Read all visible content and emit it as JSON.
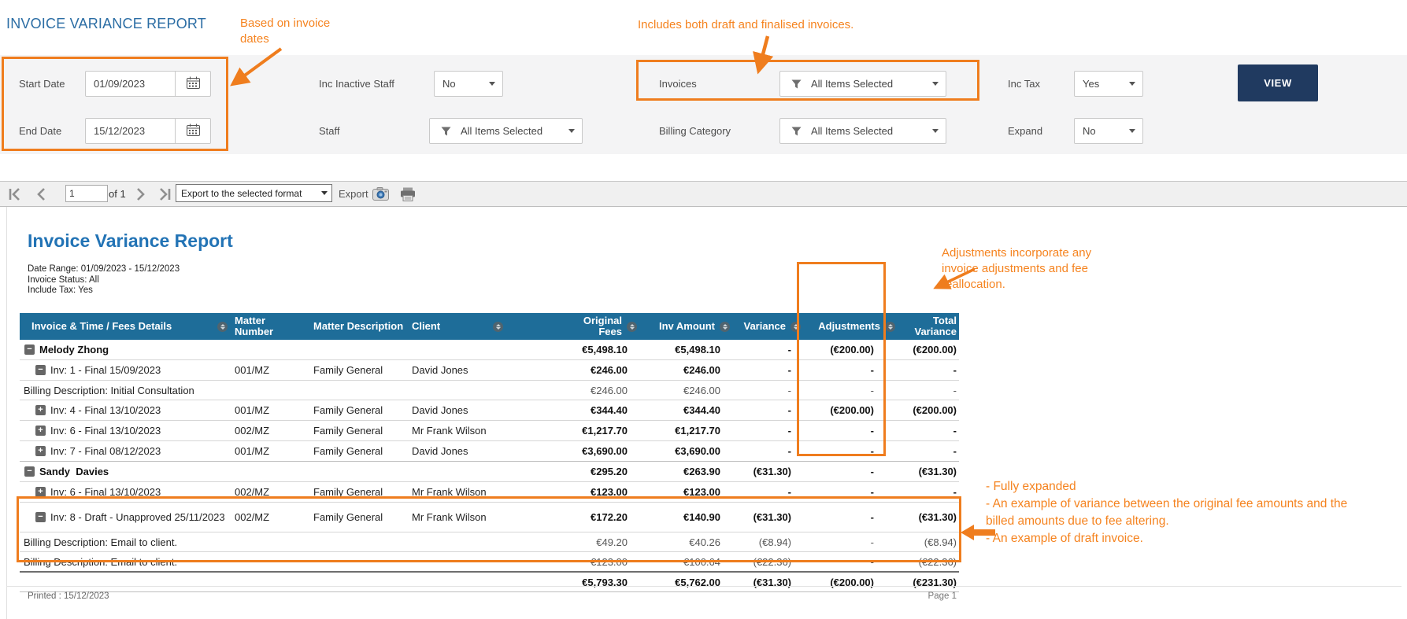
{
  "page_title": "INVOICE VARIANCE REPORT",
  "annotations": {
    "based_on_invoice_dates": "Based on invoice dates",
    "includes_invoices": "Includes both draft and finalised invoices.",
    "adjustments_note": "Adjustments incorporate any invoice adjustments and fee reallocation.",
    "expanded_notes": [
      "- Fully expanded",
      "- An example of variance between the original fee amounts and the billed amounts due to fee altering.",
      "- An example of draft invoice."
    ]
  },
  "filters": {
    "start_date": {
      "label": "Start Date",
      "value": "01/09/2023"
    },
    "end_date": {
      "label": "End Date",
      "value": "15/12/2023"
    },
    "inc_inactive_staff": {
      "label": "Inc Inactive Staff",
      "value": "No"
    },
    "staff": {
      "label": "Staff",
      "value": "All Items Selected"
    },
    "invoices": {
      "label": "Invoices",
      "value": "All Items Selected"
    },
    "billing_category": {
      "label": "Billing Category",
      "value": "All Items Selected"
    },
    "inc_tax": {
      "label": "Inc Tax",
      "value": "Yes"
    },
    "expand": {
      "label": "Expand",
      "value": "No"
    },
    "view_button": "VIEW"
  },
  "toolbar": {
    "page_number": "1",
    "page_count_label": "of 1",
    "export_format_placeholder": "Export to the selected format",
    "export_label": "Export"
  },
  "report": {
    "title": "Invoice Variance Report",
    "meta_lines": [
      "Date Range: 01/09/2023  -  15/12/2023",
      "Invoice Status: All",
      "Include Tax: Yes"
    ],
    "printed_label": "Printed : 15/12/2023",
    "page_label": "Page 1"
  },
  "table": {
    "columns": [
      "Invoice & Time / Fees Details",
      "Matter Number",
      "Matter Description",
      "Client",
      "Original Fees",
      "Inv Amount",
      "Variance",
      "Adjustments",
      "Total Variance"
    ],
    "rows": [
      {
        "type": "group",
        "icon": "minus",
        "label": "Melody Zhong",
        "matter": "",
        "description": "",
        "client": "",
        "values": [
          "€5,498.10",
          "€5,498.10",
          "-",
          "(€200.00)",
          "(€200.00)"
        ]
      },
      {
        "type": "invoice",
        "icon": "minus",
        "label": "Inv: 1 - Final 15/09/2023",
        "matter": "001/MZ",
        "description": "Family General",
        "client": "David Jones",
        "values": [
          "€246.00",
          "€246.00",
          "-",
          "-",
          "-"
        ]
      },
      {
        "type": "detail",
        "icon": "",
        "label": "Billing Description: Initial Consultation",
        "matter": "",
        "description": "",
        "client": "",
        "values": [
          "€246.00",
          "€246.00",
          "-",
          "-",
          "-"
        ]
      },
      {
        "type": "invoice",
        "icon": "plus",
        "label": "Inv: 4 - Final 13/10/2023",
        "matter": "001/MZ",
        "description": "Family General",
        "client": "David Jones",
        "values": [
          "€344.40",
          "€344.40",
          "-",
          "(€200.00)",
          "(€200.00)"
        ]
      },
      {
        "type": "invoice",
        "icon": "plus",
        "label": "Inv: 6 - Final 13/10/2023",
        "matter": "002/MZ",
        "description": "Family General",
        "client": "Mr Frank Wilson",
        "values": [
          "€1,217.70",
          "€1,217.70",
          "-",
          "-",
          "-"
        ]
      },
      {
        "type": "invoice",
        "icon": "plus",
        "label": "Inv: 7 - Final 08/12/2023",
        "matter": "001/MZ",
        "description": "Family General",
        "client": "David Jones",
        "values": [
          "€3,690.00",
          "€3,690.00",
          "-",
          "-",
          "-"
        ]
      },
      {
        "type": "group",
        "icon": "minus",
        "label": "Sandy  Davies",
        "matter": "",
        "description": "",
        "client": "",
        "values": [
          "€295.20",
          "€263.90",
          "(€31.30)",
          "-",
          "(€31.30)"
        ]
      },
      {
        "type": "invoice",
        "icon": "plus",
        "label": "Inv: 6 - Final 13/10/2023",
        "matter": "002/MZ",
        "description": "Family General",
        "client": "Mr Frank Wilson",
        "values": [
          "€123.00",
          "€123.00",
          "-",
          "-",
          "-"
        ]
      },
      {
        "type": "invoice",
        "icon": "minus",
        "tall": true,
        "label": "Inv: 8 - Draft - Unapproved 25/11/2023",
        "matter": "002/MZ",
        "description": "Family General",
        "client": "Mr Frank Wilson",
        "values": [
          "€172.20",
          "€140.90",
          "(€31.30)",
          "-",
          "(€31.30)"
        ]
      },
      {
        "type": "detail",
        "icon": "",
        "label": "Billing Description: Email to client.",
        "matter": "",
        "description": "",
        "client": "",
        "values": [
          "€49.20",
          "€40.26",
          "(€8.94)",
          "-",
          "(€8.94)"
        ]
      },
      {
        "type": "detail",
        "icon": "",
        "label": "Billing Description: Email to client.",
        "matter": "",
        "description": "",
        "client": "",
        "values": [
          "€123.00",
          "€100.64",
          "(€22.36)",
          "-",
          "(€22.36)"
        ]
      },
      {
        "type": "total",
        "icon": "",
        "label": "",
        "matter": "",
        "description": "",
        "client": "",
        "values": [
          "€5,793.30",
          "€5,762.00",
          "(€31.30)",
          "(€200.00)",
          "(€231.30)"
        ]
      }
    ]
  },
  "colors": {
    "accent_orange": "#EF7D1E",
    "table_header_blue": "#1E6D99",
    "page_title_blue": "#2B6DA4",
    "report_title_blue": "#2273B5",
    "view_button_navy": "#203A60"
  }
}
